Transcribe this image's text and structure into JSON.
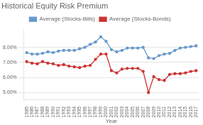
{
  "chart_data": {
    "type": "line",
    "title": "Historical Equity Risk Premium",
    "xlabel": "Year",
    "x": [
      1985,
      1986,
      1987,
      1988,
      1989,
      1990,
      1991,
      1992,
      1993,
      1994,
      1995,
      1996,
      1997,
      1998,
      1999,
      2000,
      2001,
      2002,
      2003,
      2004,
      2005,
      2006,
      2007,
      2008,
      2009,
      2010,
      2011,
      2012,
      2013,
      2014,
      2015,
      2016,
      2017
    ],
    "series": [
      {
        "name": "Average (Stocks-Bills)",
        "color": "#6699cc",
        "values": [
          7.65,
          7.55,
          7.55,
          7.6,
          7.7,
          7.65,
          7.75,
          7.8,
          7.8,
          7.8,
          7.9,
          8.0,
          8.2,
          8.35,
          8.7,
          8.4,
          7.85,
          7.7,
          7.8,
          7.95,
          7.95,
          7.95,
          8.0,
          7.3,
          7.25,
          7.45,
          7.55,
          7.6,
          7.8,
          7.95,
          8.0,
          8.05,
          8.1
        ]
      },
      {
        "name": "Average (Stocks-Bonds)",
        "color": "#cc3333",
        "values": [
          7.05,
          6.95,
          6.9,
          7.05,
          6.95,
          6.9,
          6.8,
          6.85,
          6.75,
          6.7,
          6.65,
          6.75,
          6.8,
          7.2,
          7.55,
          7.55,
          6.45,
          6.3,
          6.55,
          6.6,
          6.6,
          6.6,
          6.4,
          5.0,
          6.05,
          5.85,
          5.8,
          6.2,
          6.25,
          6.25,
          6.3,
          6.4,
          6.45
        ]
      }
    ],
    "xlim": [
      1984.5,
      2017.5
    ],
    "xticks": [
      1985,
      1986,
      1987,
      1988,
      1989,
      1990,
      1991,
      1992,
      1993,
      1994,
      1995,
      1996,
      1997,
      1998,
      1999,
      2000,
      2001,
      2002,
      2003,
      2004,
      2005,
      2006,
      2007,
      2008,
      2009,
      2010,
      2011,
      2012,
      2013,
      2014,
      2015,
      2016,
      2017
    ],
    "ylim": [
      4.5,
      9.2
    ],
    "yticks": [
      {
        "value": 5.0,
        "label": "5.00%"
      },
      {
        "value": 6.0,
        "label": "6.00%"
      },
      {
        "value": 7.0,
        "label": "7.00%"
      },
      {
        "value": 8.0,
        "label": "8.00%"
      }
    ],
    "grid": "y",
    "legend": "top",
    "marker": "circle"
  }
}
